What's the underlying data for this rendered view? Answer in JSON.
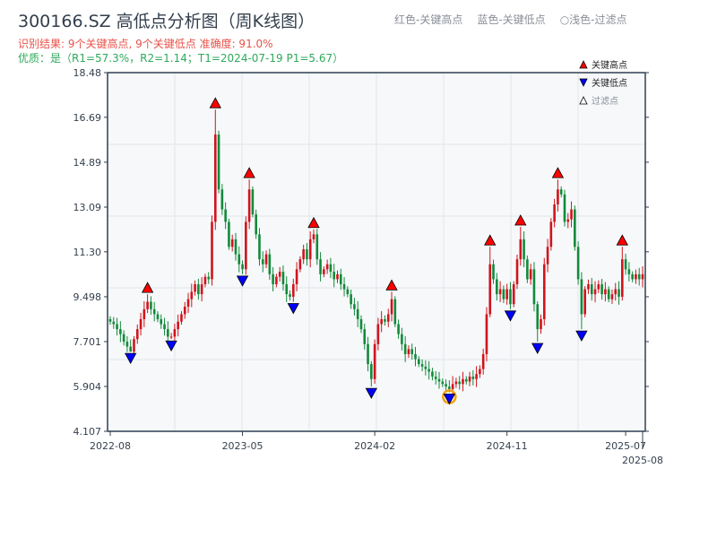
{
  "header": {
    "title": "300166.SZ 高低点分析图（周K线图）",
    "result": "识别结果: 9个关键高点, 9个关键低点   准确度: 91.0%",
    "quality": "优质：是（R1=57.3%，R2=1.14；T1=2024-07-19 P1=5.67）",
    "legend_top": [
      "红色-关键高点",
      "蓝色-关键低点",
      "○浅色-过滤点"
    ]
  },
  "chart_data": {
    "type": "candlestick",
    "title": "300166.SZ 高低点分析图（周K线图）",
    "ylim": [
      4.107,
      18.48
    ],
    "yticks": [
      "4.107",
      "5.904",
      "7.701",
      "9.498",
      "11.30",
      "13.09",
      "14.89",
      "16.69",
      "18.48"
    ],
    "xticks": [
      {
        "label": "2022-08",
        "i": 0
      },
      {
        "label": "2023-05",
        "i": 39
      },
      {
        "label": "2024-02",
        "i": 78
      },
      {
        "label": "2024-11",
        "i": 117
      },
      {
        "label": "2025-07",
        "i": 152
      },
      {
        "label": "2025-08",
        "i": 157
      }
    ],
    "legend": [
      "关键高点",
      "关键低点",
      "过滤点"
    ],
    "colors": {
      "up": "#d0141c",
      "down": "#138a3a",
      "high": "#ff0000",
      "low": "#0000ff",
      "highlight": "#f5a00a"
    },
    "closes": [
      8.5,
      8.4,
      8.2,
      8.0,
      7.7,
      7.5,
      7.3,
      7.8,
      8.2,
      8.6,
      9.0,
      9.3,
      9.0,
      8.8,
      8.6,
      8.4,
      8.2,
      7.9,
      7.9,
      8.2,
      8.5,
      8.8,
      9.1,
      9.4,
      9.7,
      10.0,
      9.6,
      10.0,
      10.3,
      10.2,
      12.5,
      16.0,
      13.8,
      13.0,
      12.5,
      11.5,
      11.8,
      11.2,
      10.8,
      10.6,
      12.5,
      13.8,
      12.8,
      12.0,
      11.0,
      10.8,
      11.2,
      10.4,
      10.0,
      10.3,
      10.5,
      10.0,
      9.6,
      9.5,
      10.0,
      10.6,
      11.0,
      11.4,
      11.0,
      11.8,
      12.0,
      11.0,
      10.4,
      10.6,
      10.8,
      10.5,
      10.2,
      10.4,
      10.0,
      9.8,
      9.6,
      9.2,
      9.0,
      8.6,
      8.2,
      7.6,
      6.8,
      6.2,
      7.6,
      8.4,
      8.6,
      8.5,
      8.8,
      9.4,
      8.4,
      8.0,
      7.6,
      7.2,
      7.4,
      7.2,
      7.0,
      6.8,
      6.7,
      6.6,
      6.5,
      6.3,
      6.2,
      6.1,
      6.0,
      5.9,
      5.8,
      6.0,
      6.1,
      6.0,
      6.2,
      6.1,
      6.3,
      6.2,
      6.4,
      6.6,
      7.2,
      8.8,
      10.8,
      10.2,
      9.6,
      9.8,
      9.4,
      9.8,
      9.2,
      10.0,
      11.0,
      11.8,
      11.0,
      10.2,
      10.6,
      9.2,
      8.2,
      8.6,
      10.8,
      11.5,
      12.5,
      13.2,
      13.8,
      13.6,
      12.5,
      12.6,
      13.0,
      11.5,
      10.2,
      8.8,
      9.8,
      10.0,
      9.6,
      9.8,
      10.0,
      9.6,
      9.8,
      9.4,
      9.6,
      9.8,
      9.5,
      11.0,
      10.6,
      10.4,
      10.2,
      10.4,
      10.2,
      10.4
    ],
    "key_highs": [
      {
        "i": 11,
        "p": 9.6
      },
      {
        "i": 31,
        "p": 17.0
      },
      {
        "i": 41,
        "p": 14.2
      },
      {
        "i": 60,
        "p": 12.2
      },
      {
        "i": 83,
        "p": 9.7
      },
      {
        "i": 112,
        "p": 11.5
      },
      {
        "i": 121,
        "p": 12.3
      },
      {
        "i": 132,
        "p": 14.2
      },
      {
        "i": 151,
        "p": 11.5
      }
    ],
    "key_lows": [
      {
        "i": 6,
        "p": 7.3
      },
      {
        "i": 18,
        "p": 7.8
      },
      {
        "i": 39,
        "p": 10.4
      },
      {
        "i": 54,
        "p": 9.3
      },
      {
        "i": 77,
        "p": 5.9
      },
      {
        "i": 100,
        "p": 5.67,
        "highlight": true
      },
      {
        "i": 118,
        "p": 9.0
      },
      {
        "i": 126,
        "p": 7.7
      },
      {
        "i": 139,
        "p": 8.2
      }
    ]
  }
}
